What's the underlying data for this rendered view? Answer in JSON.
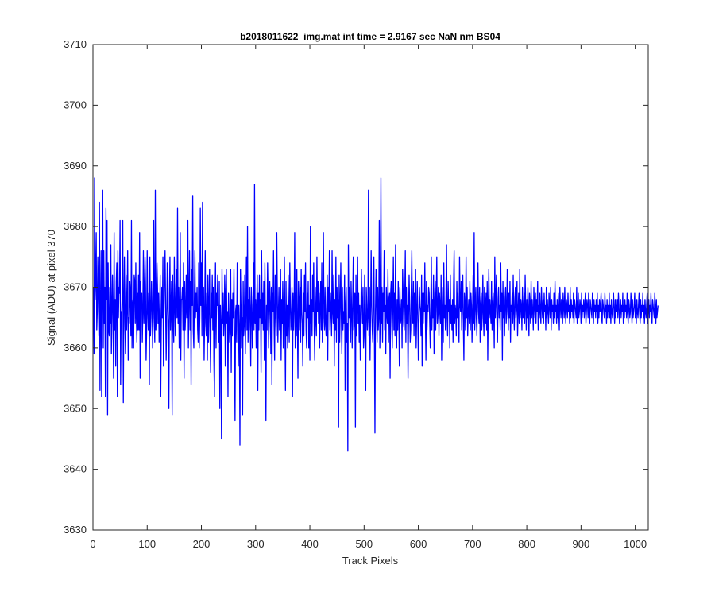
{
  "chart_data": {
    "type": "line",
    "title": "b2018011622_img.mat int time = 2.9167 sec  NaN nm BS04",
    "xlabel": "Track Pixels",
    "ylabel": "Signal (ADU) at pixel 370",
    "xlim": [
      0,
      1024
    ],
    "ylim": [
      3630,
      3710
    ],
    "xticks": [
      0,
      100,
      200,
      300,
      400,
      500,
      600,
      700,
      800,
      900,
      1000
    ],
    "yticks": [
      3630,
      3640,
      3650,
      3660,
      3670,
      3680,
      3690,
      3700,
      3710
    ],
    "grid": false,
    "legend": "none",
    "series": [
      {
        "color": "#0000ff",
        "x_start": 1,
        "x_step": 1,
        "values": [
          3670,
          3659,
          3688,
          3668,
          3671,
          3679,
          3663,
          3666,
          3675,
          3669,
          3662,
          3684,
          3653,
          3666,
          3676,
          3652,
          3669,
          3686,
          3660,
          3676,
          3664,
          3670,
          3652,
          3683,
          3668,
          3681,
          3649,
          3674,
          3663,
          3662,
          3670,
          3664,
          3677,
          3659,
          3666,
          3672,
          3665,
          3655,
          3679,
          3663,
          3668,
          3657,
          3671,
          3674,
          3652,
          3676,
          3665,
          3670,
          3669,
          3681,
          3654,
          3666,
          3665,
          3669,
          3681,
          3651,
          3667,
          3675,
          3664,
          3659,
          3672,
          3663,
          3667,
          3676,
          3658,
          3665,
          3664,
          3671,
          3669,
          3662,
          3681,
          3660,
          3667,
          3668,
          3660,
          3672,
          3671,
          3664,
          3674,
          3665,
          3661,
          3669,
          3663,
          3672,
          3663,
          3679,
          3655,
          3671,
          3667,
          3669,
          3661,
          3666,
          3676,
          3664,
          3669,
          3675,
          3670,
          3658,
          3663,
          3676,
          3666,
          3663,
          3669,
          3654,
          3675,
          3662,
          3665,
          3671,
          3667,
          3660,
          3666,
          3681,
          3665,
          3661,
          3686,
          3663,
          3666,
          3674,
          3670,
          3664,
          3669,
          3661,
          3664,
          3672,
          3652,
          3663,
          3670,
          3665,
          3675,
          3657,
          3666,
          3672,
          3676,
          3667,
          3658,
          3664,
          3674,
          3667,
          3664,
          3650,
          3669,
          3675,
          3663,
          3667,
          3671,
          3649,
          3672,
          3665,
          3661,
          3675,
          3667,
          3662,
          3670,
          3673,
          3665,
          3683,
          3664,
          3670,
          3660,
          3667,
          3679,
          3658,
          3668,
          3668,
          3670,
          3663,
          3674,
          3655,
          3671,
          3663,
          3666,
          3672,
          3665,
          3665,
          3681,
          3660,
          3668,
          3676,
          3663,
          3671,
          3654,
          3673,
          3667,
          3685,
          3663,
          3660,
          3668,
          3676,
          3665,
          3669,
          3666,
          3670,
          3663,
          3661,
          3674,
          3660,
          3665,
          3683,
          3667,
          3674,
          3662,
          3684,
          3666,
          3670,
          3658,
          3665,
          3676,
          3664,
          3662,
          3669,
          3658,
          3672,
          3661,
          3667,
          3673,
          3662,
          3656,
          3669,
          3665,
          3672,
          3663,
          3670,
          3658,
          3652,
          3666,
          3674,
          3660,
          3669,
          3667,
          3672,
          3664,
          3661,
          3671,
          3650,
          3667,
          3664,
          3645,
          3673,
          3664,
          3669,
          3662,
          3665,
          3672,
          3657,
          3669,
          3673,
          3664,
          3666,
          3652,
          3669,
          3665,
          3661,
          3663,
          3673,
          3656,
          3668,
          3662,
          3669,
          3665,
          3673,
          3661,
          3648,
          3666,
          3667,
          3661,
          3674,
          3669,
          3657,
          3667,
          3663,
          3644,
          3673,
          3667,
          3660,
          3665,
          3649,
          3671,
          3662,
          3664,
          3672,
          3659,
          3666,
          3675,
          3663,
          3680,
          3661,
          3668,
          3663,
          3670,
          3666,
          3657,
          3670,
          3667,
          3660,
          3665,
          3674,
          3663,
          3687,
          3664,
          3668,
          3660,
          3667,
          3672,
          3653,
          3669,
          3663,
          3672,
          3665,
          3668,
          3656,
          3676,
          3664,
          3669,
          3663,
          3671,
          3658,
          3674,
          3664,
          3648,
          3667,
          3663,
          3674,
          3668,
          3660,
          3665,
          3671,
          3667,
          3659,
          3670,
          3654,
          3669,
          3666,
          3676,
          3664,
          3658,
          3672,
          3667,
          3662,
          3679,
          3669,
          3661,
          3666,
          3670,
          3663,
          3666,
          3673,
          3658,
          3668,
          3664,
          3671,
          3660,
          3666,
          3675,
          3664,
          3653,
          3671,
          3662,
          3667,
          3660,
          3672,
          3665,
          3661,
          3674,
          3667,
          3663,
          3665,
          3670,
          3652,
          3669,
          3663,
          3667,
          3679,
          3660,
          3669,
          3662,
          3673,
          3664,
          3655,
          3671,
          3668,
          3663,
          3670,
          3661,
          3673,
          3666,
          3664,
          3657,
          3669,
          3662,
          3672,
          3666,
          3674,
          3663,
          3660,
          3669,
          3665,
          3671,
          3660,
          3667,
          3658,
          3680,
          3664,
          3668,
          3662,
          3672,
          3666,
          3674,
          3663,
          3658,
          3670,
          3665,
          3662,
          3675,
          3666,
          3671,
          3664,
          3669,
          3660,
          3667,
          3671,
          3663,
          3674,
          3661,
          3668,
          3679,
          3665,
          3663,
          3670,
          3664,
          3662,
          3667,
          3672,
          3658,
          3670,
          3666,
          3676,
          3663,
          3669,
          3666,
          3662,
          3676,
          3666,
          3664,
          3672,
          3657,
          3668,
          3663,
          3675,
          3661,
          3670,
          3665,
          3668,
          3647,
          3672,
          3661,
          3667,
          3674,
          3665,
          3659,
          3670,
          3663,
          3666,
          3664,
          3672,
          3653,
          3667,
          3670,
          3661,
          3664,
          3643,
          3677,
          3665,
          3670,
          3663,
          3661,
          3671,
          3666,
          3660,
          3668,
          3675,
          3663,
          3665,
          3669,
          3647,
          3672,
          3662,
          3666,
          3675,
          3664,
          3669,
          3661,
          3667,
          3658,
          3665,
          3673,
          3667,
          3664,
          3670,
          3660,
          3662,
          3672,
          3664,
          3653,
          3670,
          3667,
          3663,
          3665,
          3686,
          3662,
          3670,
          3658,
          3666,
          3676,
          3667,
          3663,
          3661,
          3668,
          3675,
          3662,
          3646,
          3666,
          3673,
          3667,
          3661,
          3670,
          3663,
          3665,
          3681,
          3660,
          3667,
          3688,
          3664,
          3670,
          3661,
          3669,
          3666,
          3676,
          3663,
          3667,
          3659,
          3670,
          3666,
          3664,
          3673,
          3661,
          3668,
          3669,
          3655,
          3669,
          3671,
          3665,
          3660,
          3667,
          3675,
          3663,
          3669,
          3662,
          3677,
          3666,
          3660,
          3668,
          3663,
          3671,
          3666,
          3657,
          3670,
          3664,
          3665,
          3668,
          3660,
          3673,
          3669,
          3664,
          3663,
          3668,
          3676,
          3661,
          3670,
          3664,
          3667,
          3655,
          3665,
          3672,
          3667,
          3661,
          3663,
          3670,
          3676,
          3665,
          3664,
          3671,
          3662,
          3669,
          3667,
          3673,
          3660,
          3665,
          3671,
          3666,
          3658,
          3664,
          3670,
          3667,
          3666,
          3662,
          3672,
          3657,
          3669,
          3664,
          3669,
          3666,
          3674,
          3665,
          3658,
          3671,
          3663,
          3667,
          3666,
          3670,
          3669,
          3664,
          3660,
          3667,
          3675,
          3663,
          3668,
          3665,
          3672,
          3659,
          3667,
          3671,
          3663,
          3668,
          3675,
          3664,
          3666,
          3670,
          3662,
          3669,
          3667,
          3664,
          3672,
          3658,
          3666,
          3670,
          3661,
          3674,
          3665,
          3667,
          3663,
          3669,
          3677,
          3665,
          3662,
          3671,
          3666,
          3668,
          3660,
          3672,
          3664,
          3667,
          3663,
          3668,
          3661,
          3670,
          3676,
          3664,
          3667,
          3666,
          3662,
          3671,
          3665,
          3669,
          3664,
          3661,
          3675,
          3667,
          3666,
          3671,
          3663,
          3668,
          3672,
          3664,
          3658,
          3669,
          3667,
          3663,
          3675,
          3665,
          3670,
          3662,
          3666,
          3668,
          3664,
          3671,
          3663,
          3669,
          3667,
          3661,
          3666,
          3672,
          3664,
          3679,
          3663,
          3667,
          3670,
          3665,
          3662,
          3668,
          3674,
          3666,
          3664,
          3670,
          3661,
          3667,
          3669,
          3663,
          3666,
          3672,
          3665,
          3662,
          3670,
          3668,
          3664,
          3669,
          3663,
          3671,
          3658,
          3667,
          3673,
          3665,
          3668,
          3666,
          3664,
          3671,
          3663,
          3667,
          3669,
          3666,
          3660,
          3675,
          3665,
          3668,
          3672,
          3664,
          3661,
          3668,
          3670,
          3665,
          3667,
          3663,
          3674,
          3666,
          3669,
          3658,
          3671,
          3665,
          3667,
          3662,
          3668,
          3670,
          3664,
          3666,
          3673,
          3667,
          3663,
          3669,
          3665,
          3671,
          3661,
          3667,
          3666,
          3669,
          3664,
          3672,
          3666,
          3663,
          3668,
          3670,
          3665,
          3667,
          3671,
          3662,
          3666,
          3669,
          3664,
          3673,
          3665,
          3668,
          3667,
          3663,
          3670,
          3665,
          3666,
          3669,
          3664,
          3672,
          3667,
          3663,
          3668,
          3665,
          3670,
          3666,
          3662,
          3669,
          3667,
          3664,
          3671,
          3665,
          3668,
          3666,
          3663,
          3670,
          3667,
          3665,
          3669,
          3664,
          3668,
          3666,
          3671,
          3663,
          3667,
          3665,
          3669,
          3666,
          3664,
          3670,
          3667,
          3665,
          3668,
          3664,
          3669,
          3666,
          3667,
          3663,
          3670,
          3665,
          3668,
          3666,
          3664,
          3669,
          3667,
          3665,
          3670,
          3663,
          3668,
          3666,
          3667,
          3664,
          3669,
          3665,
          3671,
          3666,
          3667,
          3664,
          3668,
          3665,
          3669,
          3666,
          3663,
          3670,
          3667,
          3665,
          3668,
          3666,
          3664,
          3669,
          3667,
          3665,
          3670,
          3666,
          3664,
          3668,
          3667,
          3665,
          3669,
          3666,
          3667,
          3664,
          3670,
          3665,
          3668,
          3666,
          3667,
          3665,
          3669,
          3664,
          3668,
          3667,
          3666,
          3665,
          3670,
          3664,
          3667,
          3669,
          3665,
          3666,
          3668,
          3667,
          3664,
          3669,
          3665,
          3667,
          3666,
          3668,
          3665,
          3667,
          3669,
          3664,
          3666,
          3668,
          3667,
          3665,
          3669,
          3666,
          3664,
          3668,
          3667,
          3666,
          3665,
          3669,
          3667,
          3664,
          3668,
          3666,
          3667,
          3665,
          3668,
          3666,
          3669,
          3664,
          3667,
          3665,
          3668,
          3666,
          3667,
          3669,
          3665,
          3664,
          3668,
          3667,
          3666,
          3665,
          3669,
          3666,
          3667,
          3664,
          3668,
          3665,
          3667,
          3666,
          3669,
          3665,
          3667,
          3664,
          3668,
          3666,
          3665,
          3667,
          3669,
          3666,
          3664,
          3668,
          3665,
          3667,
          3666,
          3668,
          3665,
          3669,
          3667,
          3664,
          3666,
          3668,
          3665,
          3667,
          3666,
          3669,
          3664,
          3667,
          3665,
          3668,
          3666,
          3667,
          3665,
          3669,
          3666,
          3664,
          3668,
          3667,
          3665,
          3666,
          3669,
          3667,
          3664,
          3668,
          3665,
          3666,
          3667,
          3669,
          3665,
          3667,
          3664,
          3668,
          3666,
          3665,
          3667,
          3669,
          3666,
          3664,
          3668,
          3665,
          3667,
          3666,
          3669,
          3665,
          3667,
          3664,
          3668,
          3666,
          3665,
          3667,
          3669,
          3664,
          3666,
          3668,
          3665,
          3667,
          3666,
          3669,
          3665,
          3664,
          3668,
          3667,
          3666,
          3665,
          3669,
          3667,
          3664,
          3668,
          3665,
          3666,
          3667
        ]
      }
    ]
  }
}
